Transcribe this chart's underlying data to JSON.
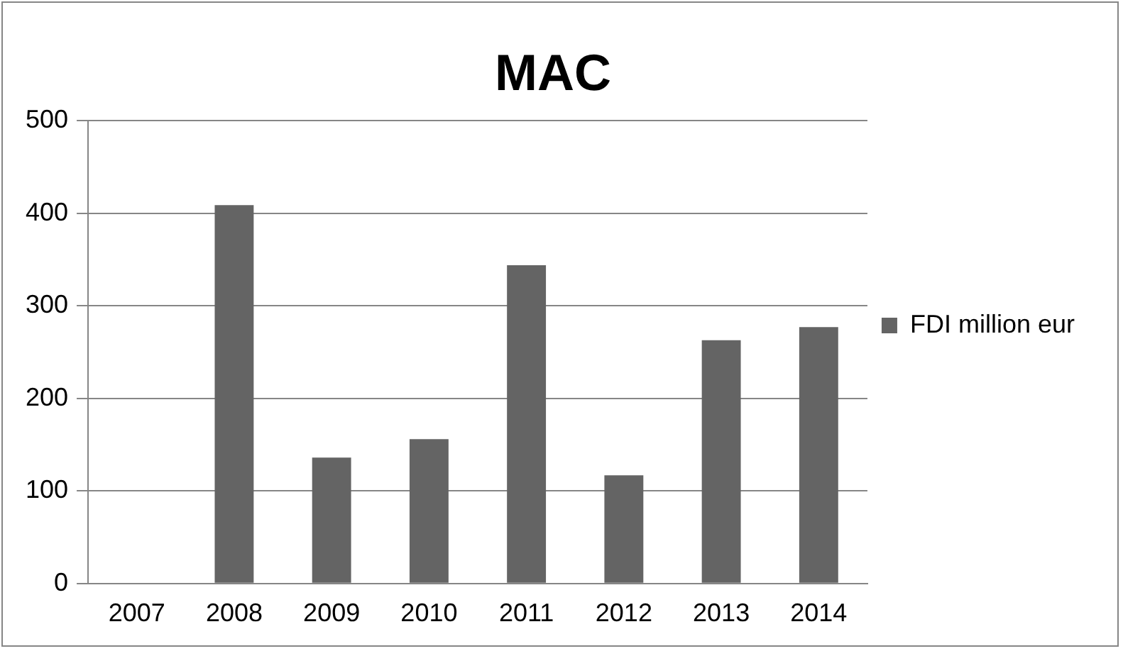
{
  "chart_data": {
    "type": "bar",
    "title": "MAC",
    "categories": [
      "2007",
      "2008",
      "2009",
      "2010",
      "2011",
      "2012",
      "2013",
      "2014"
    ],
    "series": [
      {
        "name": "FDI million eur",
        "color": "#646464",
        "values": [
          null,
          409,
          136,
          156,
          344,
          117,
          263,
          277
        ]
      }
    ],
    "ylim": [
      0,
      500
    ],
    "yticks": [
      0,
      100,
      200,
      300,
      400,
      500
    ],
    "grid": "y",
    "legend": "right"
  }
}
